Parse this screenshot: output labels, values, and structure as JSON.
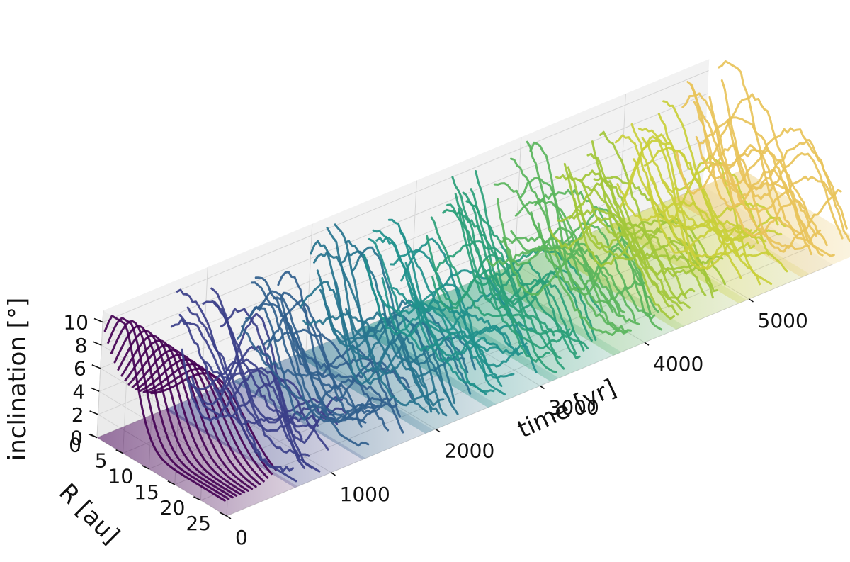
{
  "chart_data": {
    "type": "line",
    "projection": "3d",
    "colormap": "viridis",
    "xlabel": "time [yr]",
    "ylabel": "R [au]",
    "zlabel": "inclination [°]",
    "x_ticks": [
      "0",
      "1000",
      "2000",
      "3000",
      "4000",
      "5000"
    ],
    "y_ticks": [
      "0",
      "5",
      "10",
      "15",
      "20",
      "25"
    ],
    "z_ticks": [
      "0",
      "2",
      "4",
      "6",
      "8",
      "10"
    ],
    "xlim": [
      0,
      5800
    ],
    "ylim": [
      0,
      25
    ],
    "zlim": [
      0,
      11
    ],
    "grid": true,
    "snapshot_times": [
      0,
      650,
      1300,
      1900,
      2500,
      3100,
      3700,
      4300,
      4900,
      5500
    ],
    "snapshot_colors": [
      "#440154",
      "#3b3f89",
      "#31608d",
      "#27748e",
      "#21918c",
      "#2a9f78",
      "#5ab55c",
      "#a2c73a",
      "#c9cf3a",
      "#e8c35a"
    ],
    "inclination_peak_per_snapshot": [
      10.5,
      9.8,
      8.5,
      10.0,
      8.8,
      9.4,
      10.2,
      9.0,
      9.8,
      10.8
    ],
    "curves_per_snapshot": 14,
    "description_of_series": "Radial inclination profiles i(R) at successive times; each snapshot drawn as a bundle of lines with a faded surface underneath"
  }
}
